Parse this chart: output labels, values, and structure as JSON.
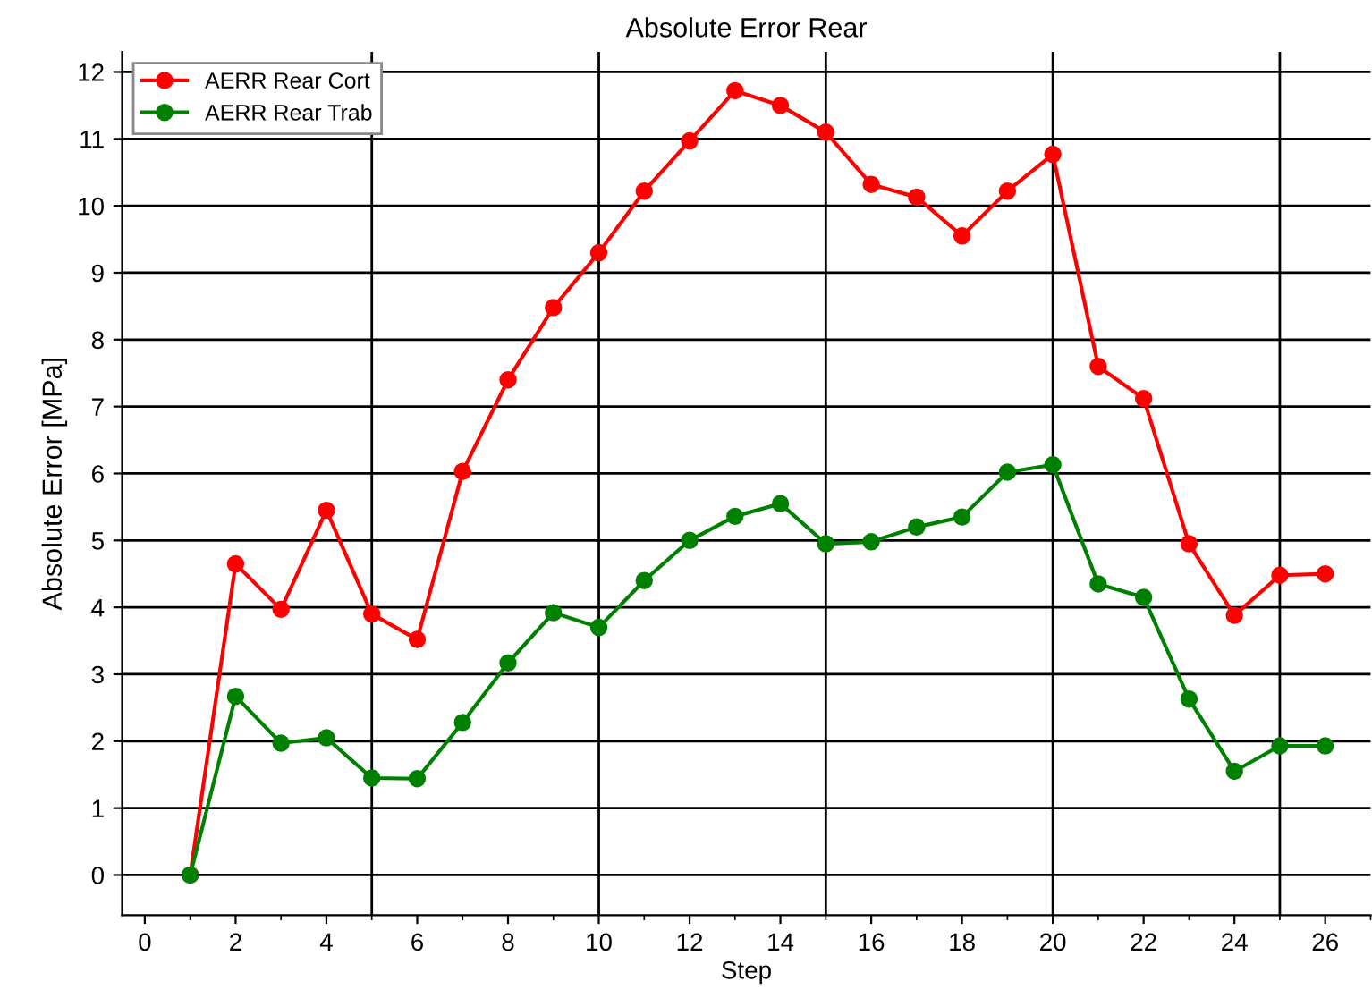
{
  "chart_data": {
    "type": "line",
    "title": "Absolute Error Rear",
    "xlabel": "Step",
    "ylabel": "Absolute Error [MPa]",
    "x": [
      1,
      2,
      3,
      4,
      5,
      6,
      7,
      8,
      9,
      10,
      11,
      12,
      13,
      14,
      15,
      16,
      17,
      18,
      19,
      20,
      21,
      22,
      23,
      24,
      25,
      26
    ],
    "series": [
      {
        "name": "AERR Rear Cort",
        "color": "#ff0000",
        "values": [
          0,
          4.65,
          3.97,
          5.45,
          3.9,
          3.52,
          6.03,
          7.4,
          8.48,
          9.3,
          10.22,
          10.97,
          11.72,
          11.5,
          11.1,
          10.32,
          10.13,
          9.55,
          10.22,
          10.77,
          7.6,
          7.12,
          4.95,
          3.88,
          4.48,
          4.5
        ]
      },
      {
        "name": "AERR Rear Trab",
        "color": "#008000",
        "values": [
          0,
          2.67,
          1.97,
          2.05,
          1.45,
          1.44,
          2.28,
          3.17,
          3.92,
          3.7,
          4.4,
          5.0,
          5.36,
          5.55,
          4.95,
          4.98,
          5.2,
          5.35,
          6.02,
          6.13,
          4.35,
          4.15,
          2.63,
          1.55,
          1.93,
          1.93
        ]
      }
    ],
    "xlim": [
      -0.5,
      27
    ],
    "xticks": [
      0,
      2,
      4,
      6,
      8,
      10,
      12,
      14,
      16,
      18,
      20,
      22,
      24,
      26
    ],
    "ylim": [
      -0.6,
      12.3
    ],
    "yticks": [
      0,
      1,
      2,
      3,
      4,
      5,
      6,
      7,
      8,
      9,
      10,
      11,
      12
    ],
    "ref_lines": [
      {
        "axis": "x",
        "value": 5,
        "color": "#000000"
      },
      {
        "axis": "x",
        "value": 10,
        "color": "#000000"
      },
      {
        "axis": "x",
        "value": 15,
        "color": "#000000"
      },
      {
        "axis": "x",
        "value": 20,
        "color": "#000000"
      },
      {
        "axis": "x",
        "value": 25,
        "color": "#000000"
      }
    ],
    "grid": "y",
    "legend": "top left",
    "marker": "circle",
    "line_style": "solid"
  }
}
